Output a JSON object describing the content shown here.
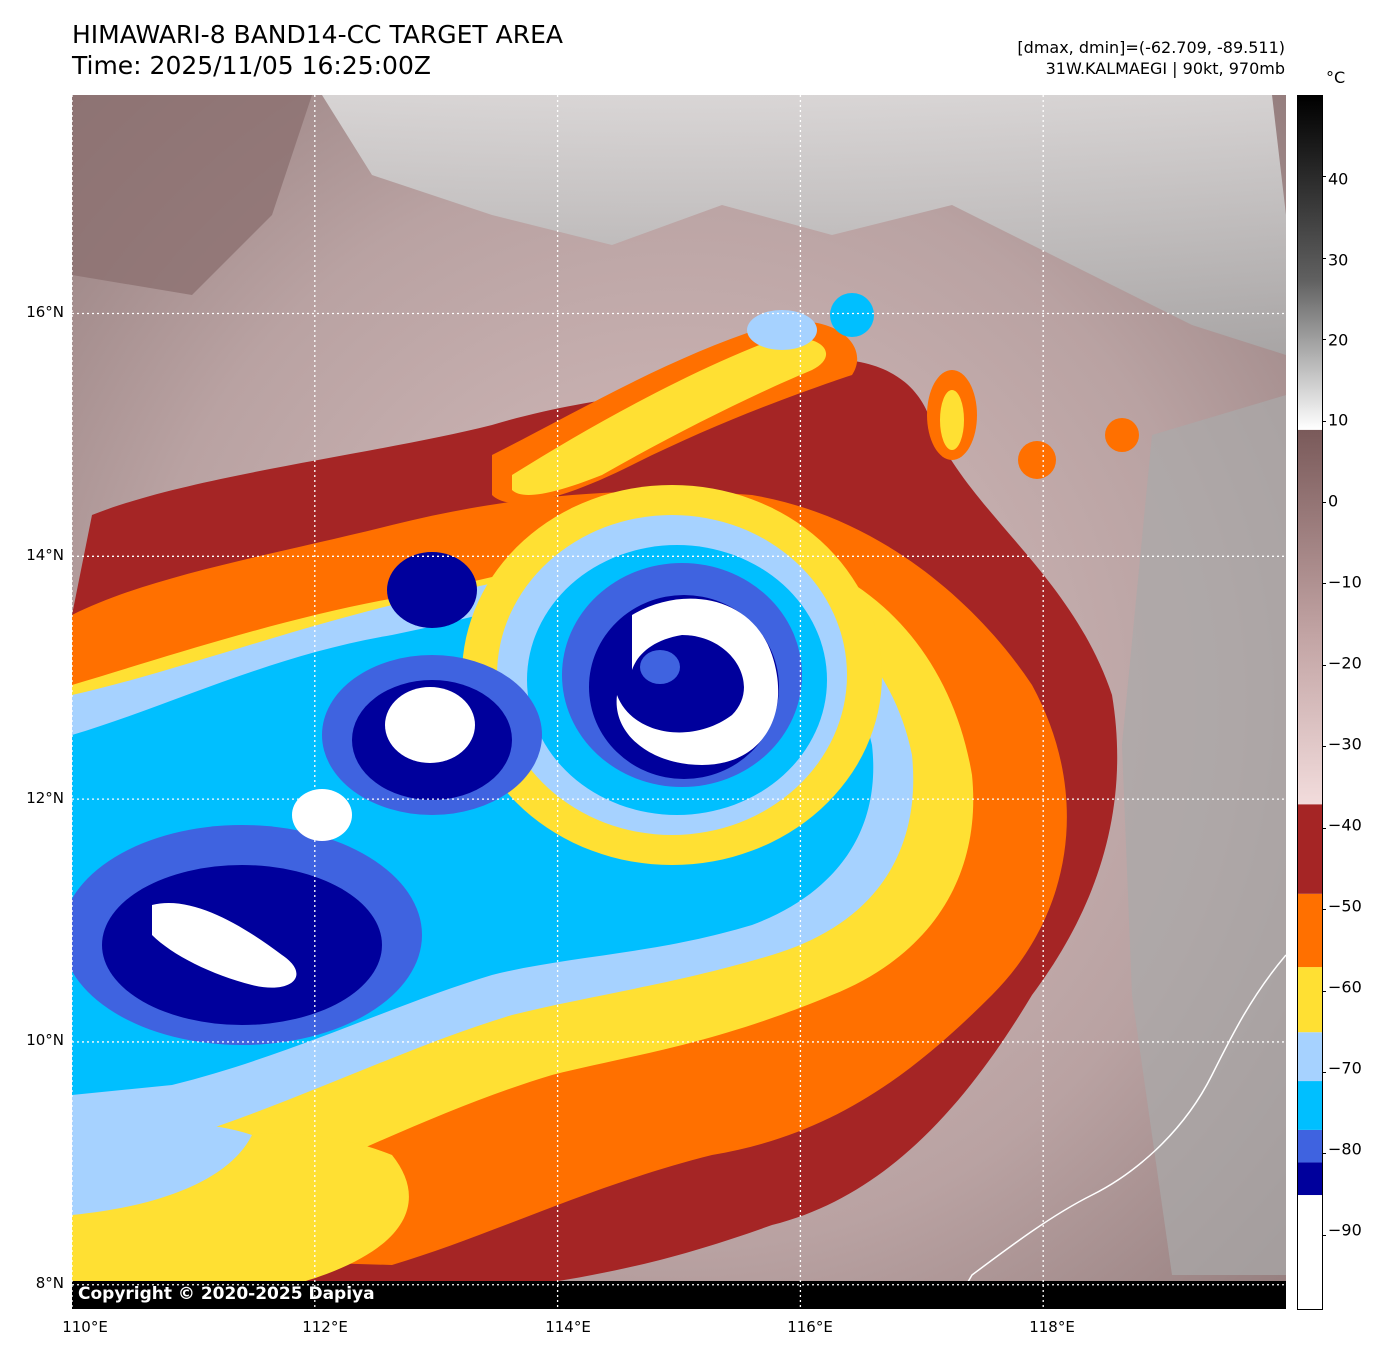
{
  "header": {
    "title_line1": "HIMAWARI-8 BAND14-CC TARGET AREA",
    "title_line2": "Time: 2025/11/05 16:25:00Z",
    "info_line1": "[dmax, dmin]=(-62.709, -89.511)",
    "info_line2": "31W.KALMAEGI | 90kt, 970mb"
  },
  "map": {
    "x_ticks": [
      "110°E",
      "112°E",
      "114°E",
      "116°E",
      "118°E"
    ],
    "y_ticks": [
      "16°N",
      "14°N",
      "12°N",
      "10°N",
      "8°N"
    ],
    "lon_values": [
      110,
      112,
      114,
      116,
      118
    ],
    "lat_values": [
      16,
      14,
      12,
      10,
      8
    ],
    "lon_range": [
      110,
      120
    ],
    "lat_range": [
      7.8,
      17.8
    ],
    "copyright": "Copyright © 2020-2025 Dapiya",
    "storm_center": {
      "lon": 114.7,
      "lat": 12.8
    }
  },
  "colorbar": {
    "unit": "°C",
    "ticks": [
      "40",
      "30",
      "20",
      "10",
      "0",
      "−10",
      "−20",
      "−30",
      "−40",
      "−50",
      "−60",
      "−70",
      "−80",
      "−90"
    ],
    "tick_values": [
      40,
      30,
      20,
      10,
      0,
      -10,
      -20,
      -30,
      -40,
      -50,
      -60,
      -70,
      -80,
      -90
    ],
    "range": [
      -99,
      50
    ],
    "bands": [
      {
        "from": -99,
        "to": -85,
        "color": "#ffffff"
      },
      {
        "from": -85,
        "to": -81,
        "color": "#00009c"
      },
      {
        "from": -81,
        "to": -77,
        "color": "#3f63e0"
      },
      {
        "from": -77,
        "to": -71,
        "color": "#00bfff"
      },
      {
        "from": -71,
        "to": -65,
        "color": "#a6d2ff"
      },
      {
        "from": -65,
        "to": -57,
        "color": "#ffe033"
      },
      {
        "from": -57,
        "to": -48,
        "color": "#ff7000"
      },
      {
        "from": -48,
        "to": -37,
        "color": "#a52525"
      },
      {
        "from": -37,
        "to": 9,
        "color": "gradient-pink-brown"
      },
      {
        "from": 9,
        "to": 50,
        "color": "gradient-white-black"
      }
    ]
  }
}
